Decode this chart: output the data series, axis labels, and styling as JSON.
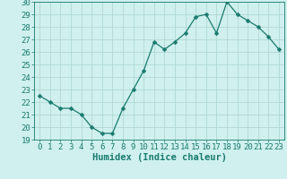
{
  "x": [
    0,
    1,
    2,
    3,
    4,
    5,
    6,
    7,
    8,
    9,
    10,
    11,
    12,
    13,
    14,
    15,
    16,
    17,
    18,
    19,
    20,
    21,
    22,
    23
  ],
  "y": [
    22.5,
    22.0,
    21.5,
    21.5,
    21.0,
    20.0,
    19.5,
    19.5,
    21.5,
    23.0,
    24.5,
    26.8,
    26.2,
    26.8,
    27.5,
    28.8,
    29.0,
    27.5,
    30.0,
    29.0,
    28.5,
    28.0,
    27.2,
    26.2
  ],
  "line_color": "#1a7a6e",
  "marker": "D",
  "marker_size": 2.5,
  "bg_color": "#cff0ee",
  "grid_color": "#b0d8d4",
  "xlabel": "Humidex (Indice chaleur)",
  "ylim": [
    19,
    30
  ],
  "yticks": [
    19,
    20,
    21,
    22,
    23,
    24,
    25,
    26,
    27,
    28,
    29,
    30
  ],
  "xticks": [
    0,
    1,
    2,
    3,
    4,
    5,
    6,
    7,
    8,
    9,
    10,
    11,
    12,
    13,
    14,
    15,
    16,
    17,
    18,
    19,
    20,
    21,
    22,
    23
  ],
  "xlabel_fontsize": 7.5,
  "tick_fontsize": 6.5
}
